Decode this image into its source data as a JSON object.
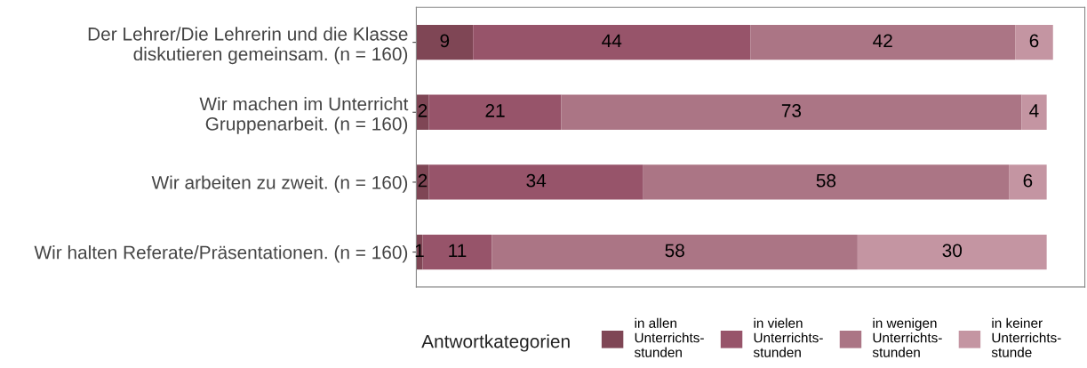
{
  "chart_data": {
    "type": "bar",
    "orientation": "horizontal",
    "stacked": true,
    "data_labels": true,
    "tick_labels": "y",
    "grid": false,
    "legend": "bottom",
    "legend_title": "Antwortkategorien",
    "categories": [
      "Der Lehrer/Die Lehrerin und die Klasse\ndiskutieren gemeinsam. (n = 160)",
      "Wir machen im Unterricht\nGruppenarbeit. (n = 160)",
      "Wir arbeiten zu zweit. (n = 160)",
      "Wir halten Referate/Präsentationen. (n = 160)"
    ],
    "series": [
      {
        "name": "in allen\nUnterrichts-\nstunden",
        "color": "#7f4655",
        "values": [
          9,
          2,
          2,
          1
        ]
      },
      {
        "name": "in vielen\nUnterrichts-\nstunden",
        "color": "#97546a",
        "values": [
          44,
          21,
          34,
          11
        ]
      },
      {
        "name": "in wenigen\nUnterrichts-\nstunden",
        "color": "#ab7585",
        "values": [
          42,
          73,
          58,
          58
        ]
      },
      {
        "name": "in keiner\nUnterrichts-\nstunde",
        "color": "#c495a2",
        "values": [
          6,
          4,
          6,
          30
        ]
      }
    ]
  }
}
